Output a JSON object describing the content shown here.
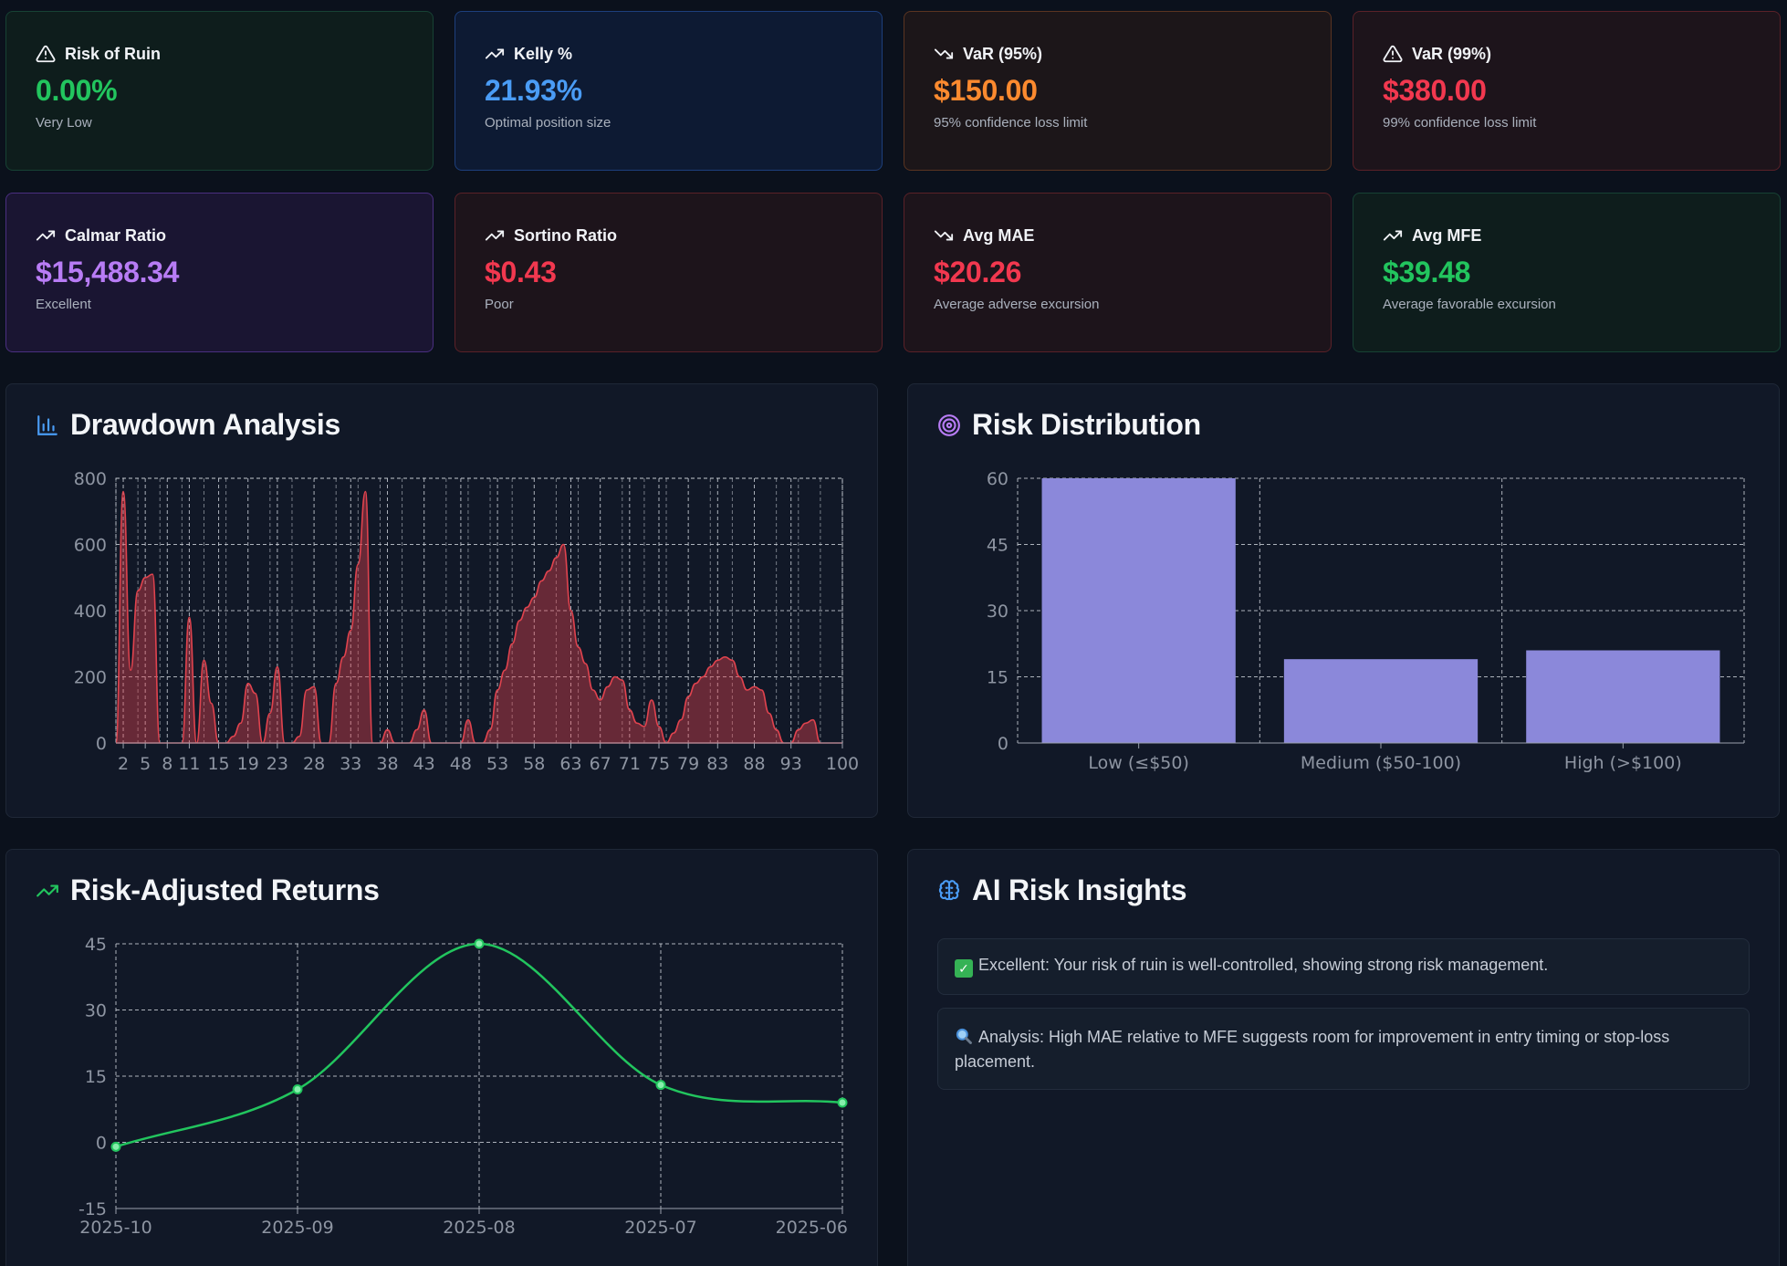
{
  "metrics": [
    {
      "title": "Risk of Ruin",
      "value": "0.00%",
      "sub": "Very Low",
      "icon": "alert-triangle-icon",
      "color": "#22c55e"
    },
    {
      "title": "Kelly %",
      "value": "21.93%",
      "sub": "Optimal position size",
      "icon": "trending-up-icon",
      "color": "#4a9cf5"
    },
    {
      "title": "VaR (95%)",
      "value": "$150.00",
      "sub": "95% confidence loss limit",
      "icon": "trending-down-icon",
      "color": "#fb8a2f"
    },
    {
      "title": "VaR (99%)",
      "value": "$380.00",
      "sub": "99% confidence loss limit",
      "icon": "alert-triangle-icon",
      "color": "#f2384f"
    },
    {
      "title": "Calmar Ratio",
      "value": "$15,488.34",
      "sub": "Excellent",
      "icon": "trending-up-icon",
      "color": "#b87cf5"
    },
    {
      "title": "Sortino Ratio",
      "value": "$0.43",
      "sub": "Poor",
      "icon": "trending-up-icon",
      "color": "#f2384f"
    },
    {
      "title": "Avg MAE",
      "value": "$20.26",
      "sub": "Average adverse excursion",
      "icon": "trending-down-icon",
      "color": "#f2384f"
    },
    {
      "title": "Avg MFE",
      "value": "$39.48",
      "sub": "Average favorable excursion",
      "icon": "trending-up-icon",
      "color": "#22c55e"
    }
  ],
  "panels": {
    "drawdown": {
      "title": "Drawdown Analysis",
      "icon": "bar-chart-icon"
    },
    "distribution": {
      "title": "Risk Distribution",
      "icon": "target-icon"
    },
    "returns": {
      "title": "Risk-Adjusted Returns",
      "icon": "trending-up-icon"
    },
    "insights": {
      "title": "AI Risk Insights",
      "icon": "brain-icon"
    }
  },
  "insights": [
    {
      "icon": "check-box-icon",
      "text": "Excellent: Your risk of ruin is well-controlled, showing strong risk management."
    },
    {
      "icon": "magnifier-icon",
      "text": "Analysis: High MAE relative to MFE suggests room for improvement in entry timing or stop-loss placement."
    }
  ],
  "chart_data": [
    {
      "type": "area",
      "x": [
        1,
        2,
        3,
        4,
        5,
        6,
        7,
        8,
        9,
        10,
        11,
        12,
        13,
        14,
        15,
        16,
        17,
        18,
        19,
        20,
        21,
        22,
        23,
        24,
        25,
        26,
        27,
        28,
        29,
        30,
        31,
        32,
        33,
        34,
        35,
        36,
        37,
        38,
        39,
        40,
        41,
        42,
        43,
        44,
        45,
        46,
        47,
        48,
        49,
        50,
        51,
        52,
        53,
        54,
        55,
        56,
        57,
        58,
        59,
        60,
        61,
        62,
        63,
        64,
        65,
        66,
        67,
        68,
        69,
        70,
        71,
        72,
        73,
        74,
        75,
        76,
        77,
        78,
        79,
        80,
        81,
        82,
        83,
        84,
        85,
        86,
        87,
        88,
        89,
        90,
        91,
        92,
        93,
        94,
        95,
        96,
        97,
        98,
        99,
        100
      ],
      "values": [
        0,
        760,
        220,
        460,
        500,
        510,
        0,
        0,
        0,
        0,
        380,
        0,
        250,
        120,
        0,
        0,
        20,
        60,
        180,
        150,
        0,
        90,
        230,
        0,
        0,
        20,
        160,
        170,
        0,
        0,
        180,
        260,
        340,
        540,
        760,
        0,
        0,
        40,
        0,
        0,
        0,
        40,
        100,
        0,
        0,
        0,
        0,
        0,
        70,
        0,
        0,
        40,
        160,
        220,
        300,
        370,
        410,
        440,
        490,
        520,
        560,
        600,
        400,
        290,
        240,
        160,
        130,
        170,
        200,
        190,
        100,
        60,
        50,
        130,
        50,
        0,
        30,
        70,
        140,
        180,
        200,
        230,
        250,
        260,
        250,
        200,
        160,
        170,
        160,
        90,
        40,
        0,
        0,
        40,
        60,
        70,
        0,
        0,
        0,
        0
      ],
      "tick_labels": [
        "2",
        "5",
        "8",
        "11",
        "15",
        "19",
        "23",
        "28",
        "33",
        "38",
        "43",
        "48",
        "53",
        "58",
        "63",
        "67",
        "71",
        "75",
        "79",
        "83",
        "88",
        "93",
        "100"
      ],
      "ylim": [
        0,
        800
      ],
      "yticks": [
        0,
        200,
        400,
        600,
        800
      ],
      "color": "#e0434e",
      "grid": true
    },
    {
      "type": "bar",
      "categories": [
        "Low (≤$50)",
        "Medium ($50-100)",
        "High (>$100)"
      ],
      "values": [
        60,
        19,
        21
      ],
      "ylim": [
        0,
        60
      ],
      "yticks": [
        0,
        15,
        30,
        45,
        60
      ],
      "color": "#8b88da",
      "grid": true
    },
    {
      "type": "line",
      "categories": [
        "2025-10",
        "2025-09",
        "2025-08",
        "2025-07",
        "2025-06"
      ],
      "values": [
        -1,
        12,
        45,
        13,
        9
      ],
      "ylim": [
        -15,
        45
      ],
      "yticks": [
        -15,
        0,
        15,
        30,
        45
      ],
      "color": "#22c55e",
      "grid": true
    }
  ]
}
